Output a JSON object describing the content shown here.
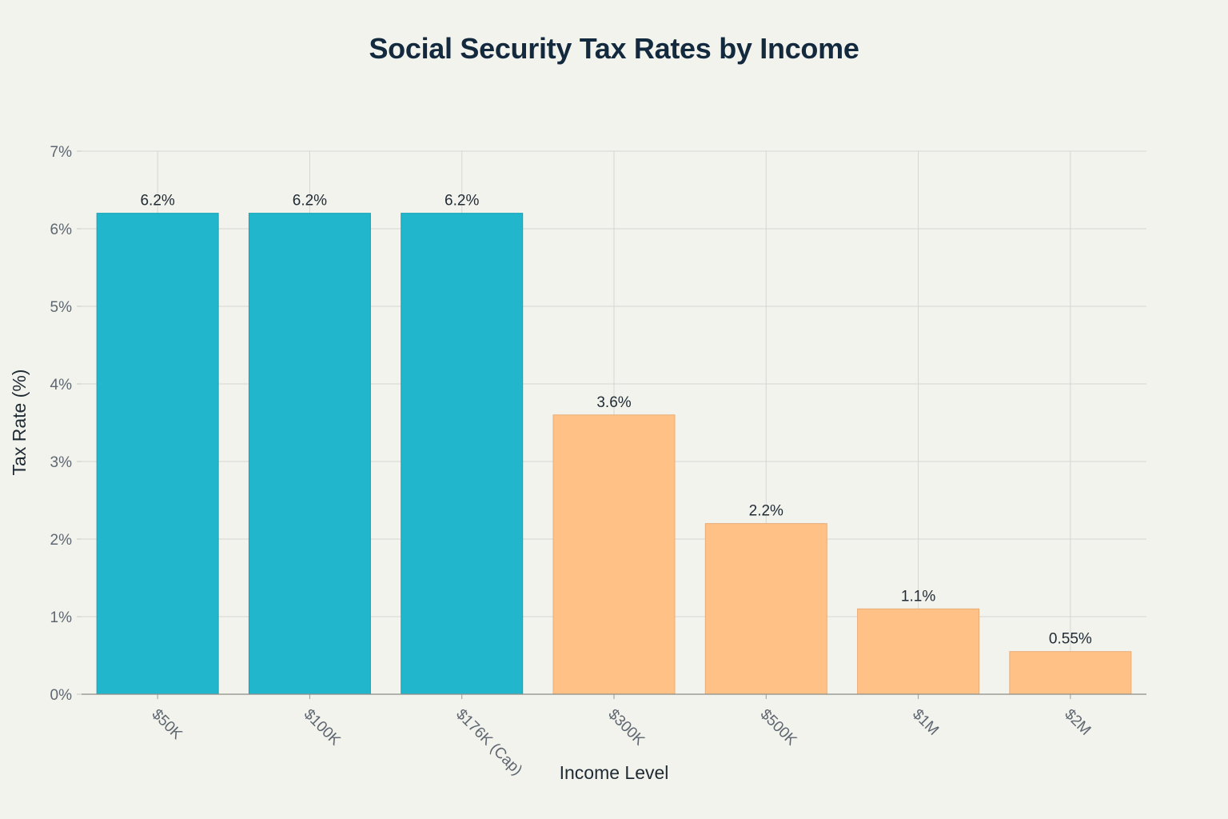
{
  "chart_data": {
    "type": "bar",
    "title": "Social Security Tax Rates by Income",
    "xlabel": "Income Level",
    "ylabel": "Tax Rate (%)",
    "categories": [
      "$50K",
      "$100K",
      "$176K (Cap)",
      "$300K",
      "$500K",
      "$1M",
      "$2M"
    ],
    "values": [
      6.2,
      6.2,
      6.2,
      3.6,
      2.2,
      1.1,
      0.55
    ],
    "data_labels": [
      "6.2%",
      "6.2%",
      "6.2%",
      "3.6%",
      "2.2%",
      "1.1%",
      "0.55%"
    ],
    "ylim": [
      0,
      7
    ],
    "yticks": [
      0,
      1,
      2,
      3,
      4,
      5,
      6,
      7
    ],
    "ytick_labels": [
      "0%",
      "1%",
      "2%",
      "3%",
      "4%",
      "5%",
      "6%",
      "7%"
    ],
    "grid": true,
    "bar_colors": [
      "#21b6cb",
      "#21b6cb",
      "#21b6cb",
      "#ffc185",
      "#ffc185",
      "#ffc185",
      "#ffc185"
    ],
    "bar_edge_colors": [
      "#1ba3b6",
      "#1ba3b6",
      "#1ba3b6",
      "#e8ad78",
      "#e8ad78",
      "#e8ad78",
      "#e8ad78"
    ],
    "background_color": "#f3f3ee",
    "grid_color": "#d6d6d1"
  }
}
